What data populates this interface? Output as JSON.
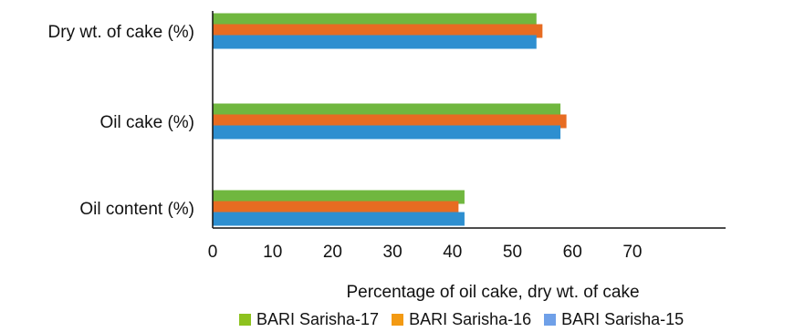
{
  "chart_data": {
    "type": "bar",
    "orientation": "horizontal",
    "categories": [
      "Dry wt. of cake (%)",
      "Oil cake (%)",
      "Oil content (%)"
    ],
    "series": [
      {
        "name": "BARI Sarisha-17",
        "color": "#70b73f",
        "values": [
          54,
          58,
          42
        ]
      },
      {
        "name": "BARI Sarisha-16",
        "color": "#e76c22",
        "values": [
          55,
          59,
          41
        ]
      },
      {
        "name": "BARI Sarisha-15",
        "color": "#2e8fd0",
        "values": [
          54,
          58,
          42
        ]
      }
    ],
    "xlabel": "Percentage of oil cake, dry wt. of cake",
    "ylabel": "",
    "xlim": [
      0,
      70
    ],
    "xticks": [
      "0",
      "10",
      "20",
      "30",
      "40",
      "50",
      "60",
      "70"
    ],
    "grid": false,
    "legend_position": "bottom"
  },
  "legend": {
    "items": [
      {
        "label": "BARI Sarisha-17",
        "color": "#8dc21f"
      },
      {
        "label": "BARI Sarisha-16",
        "color": "#f39a13"
      },
      {
        "label": "BARI Sarisha-15",
        "color": "#6fa0e8"
      }
    ]
  }
}
